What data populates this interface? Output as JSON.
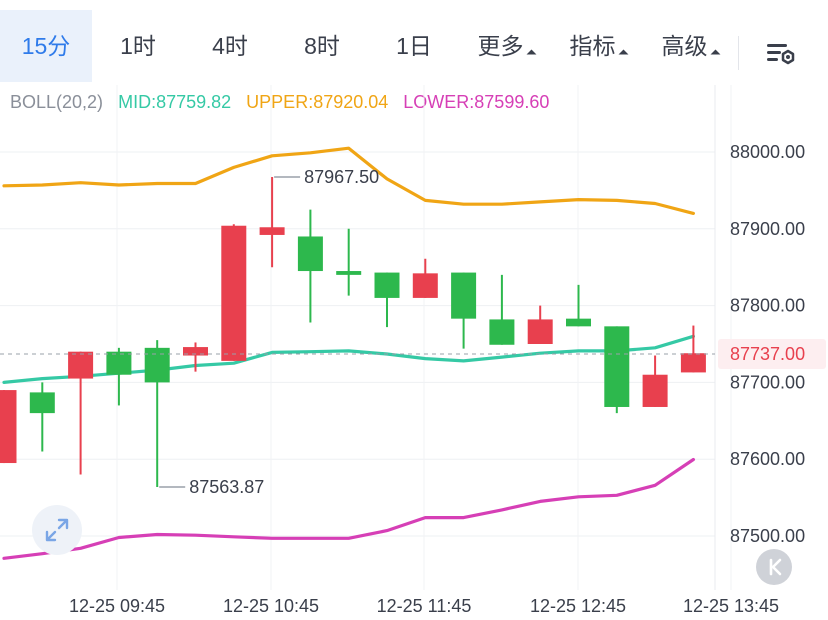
{
  "tabs": [
    {
      "label": "15分",
      "active": true
    },
    {
      "label": "1时",
      "active": false
    },
    {
      "label": "4时",
      "active": false
    },
    {
      "label": "8时",
      "active": false
    },
    {
      "label": "1日",
      "active": false
    },
    {
      "label": "更多",
      "active": false,
      "dropdown": true
    },
    {
      "label": "指标",
      "active": false,
      "dropdown": true
    },
    {
      "label": "高级",
      "active": false,
      "dropdown": true
    }
  ],
  "settings_icon": "chart-settings-icon",
  "legend": {
    "indicator": "BOLL(20,2)",
    "mid": "MID:87759.82",
    "upper": "UPPER:87920.04",
    "lower": "LOWER:87599.60"
  },
  "colors": {
    "up": "#e8404e",
    "down": "#2db84d",
    "mid": "#35c9a5",
    "upper": "#f0a515",
    "lower": "#d63fb6",
    "active_tab": "#2f7bea",
    "price_tag": "#e8404e"
  },
  "price_tag": "87737.00",
  "annotations": {
    "high": "87967.50",
    "low": "87563.87"
  },
  "chart_data": {
    "type": "candlestick",
    "title": "",
    "y_ticks": [
      "88000.00",
      "87900.00",
      "87800.00",
      "87700.00",
      "87600.00",
      "87500.00"
    ],
    "ylim": [
      87450,
      88100
    ],
    "x_ticks": [
      "12-25 09:45",
      "12-25 10:45",
      "12-25 11:45",
      "12-25 12:45",
      "12-25 13:45"
    ],
    "candles": [
      {
        "open": 87595,
        "close": 87690,
        "high": 87690,
        "low": 87595
      },
      {
        "open": 87687,
        "close": 87660,
        "high": 87700,
        "low": 87610
      },
      {
        "open": 87705,
        "close": 87740,
        "high": 87740,
        "low": 87580
      },
      {
        "open": 87740,
        "close": 87710,
        "high": 87745,
        "low": 87670
      },
      {
        "open": 87745,
        "close": 87700,
        "high": 87755,
        "low": 87563.87
      },
      {
        "open": 87735,
        "close": 87746,
        "high": 87752,
        "low": 87714
      },
      {
        "open": 87728,
        "close": 87904,
        "high": 87906,
        "low": 87728
      },
      {
        "open": 87892,
        "close": 87902,
        "high": 87967.5,
        "low": 87850
      },
      {
        "open": 87890,
        "close": 87845,
        "high": 87925,
        "low": 87778
      },
      {
        "open": 87845,
        "close": 87840,
        "high": 87900,
        "low": 87813
      },
      {
        "open": 87843,
        "close": 87810,
        "high": 87843,
        "low": 87772
      },
      {
        "open": 87810,
        "close": 87842,
        "high": 87861,
        "low": 87810
      },
      {
        "open": 87843,
        "close": 87783,
        "high": 87843,
        "low": 87744
      },
      {
        "open": 87782,
        "close": 87749,
        "high": 87840,
        "low": 87749
      },
      {
        "open": 87750,
        "close": 87782,
        "high": 87800,
        "low": 87750
      },
      {
        "open": 87783,
        "close": 87773,
        "high": 87827,
        "low": 87773
      },
      {
        "open": 87773,
        "close": 87668,
        "high": 87773,
        "low": 87660
      },
      {
        "open": 87668,
        "close": 87710,
        "high": 87735,
        "low": 87668
      },
      {
        "open": 87713,
        "close": 87738,
        "high": 87774,
        "low": 87713
      }
    ],
    "boll_upper": [
      87956,
      87957,
      87960,
      87957,
      87959,
      87959,
      87980,
      87995,
      87999,
      88005,
      87965,
      87937,
      87932,
      87932,
      87935,
      87938,
      87937,
      87933,
      87920
    ],
    "boll_mid": [
      87700,
      87705,
      87708,
      87712,
      87716,
      87722,
      87725,
      87739,
      87740,
      87741,
      87737,
      87731,
      87728,
      87733,
      87738,
      87741,
      87741,
      87745,
      87760
    ],
    "boll_lower": [
      87471,
      87477,
      87484,
      87498,
      87502,
      87501,
      87499,
      87497,
      87497,
      87497,
      87507,
      87524,
      87524,
      87534,
      87545,
      87551,
      87553,
      87566,
      87599.6
    ]
  }
}
